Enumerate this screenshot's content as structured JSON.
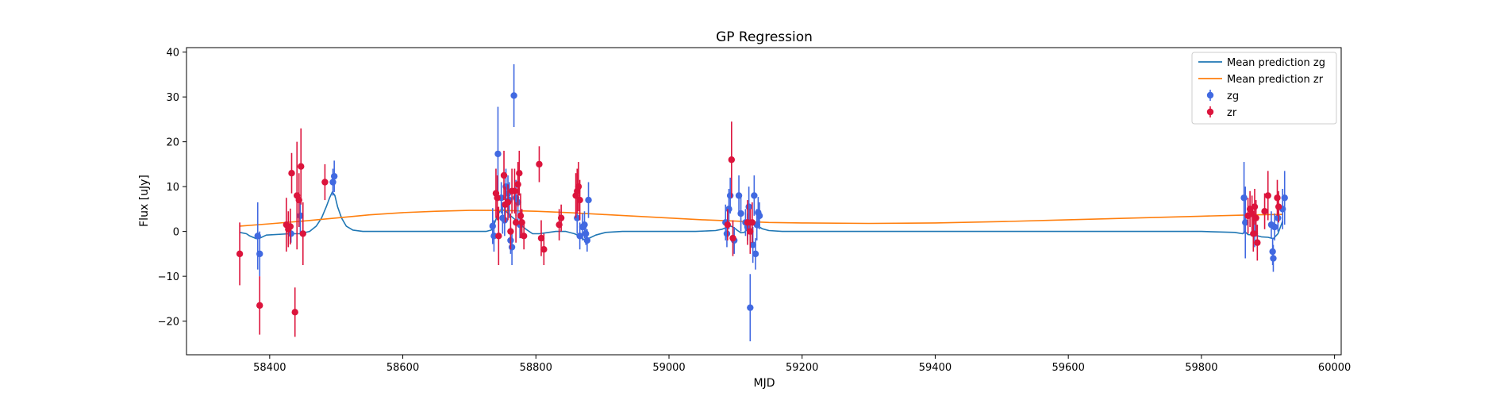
{
  "chart_data": {
    "type": "scatter",
    "title": "GP Regression",
    "xlabel": "MJD",
    "ylabel": "Flux [uJy]",
    "xlim": [
      58275,
      60010
    ],
    "ylim": [
      -27.5,
      41
    ],
    "xticks": [
      58400,
      58600,
      58800,
      59000,
      59200,
      59400,
      59600,
      59800,
      60000
    ],
    "yticks": [
      -20,
      -10,
      0,
      10,
      20,
      30,
      40
    ],
    "grid": false,
    "legend_position": "top-right",
    "colors": {
      "mean_zg": "#1f77b4",
      "mean_zr": "#ff7f0e",
      "zg": "#4169e1",
      "zr": "#dc143c"
    },
    "series": [
      {
        "name": "Mean prediction zg",
        "kind": "line",
        "color_key": "mean_zg",
        "x": [
          58355,
          58365,
          58370,
          58380,
          58385,
          58395,
          58430,
          58445,
          58460,
          58470,
          58478,
          58485,
          58490,
          58494,
          58498,
          58502,
          58508,
          58515,
          58525,
          58540,
          58560,
          58600,
          58650,
          58700,
          58725,
          58733,
          58737,
          58742,
          58748,
          58755,
          58762,
          58770,
          58777,
          58785,
          58795,
          58805,
          58815,
          58830,
          58845,
          58858,
          58865,
          58872,
          58880,
          58890,
          58905,
          58930,
          58960,
          59000,
          59040,
          59070,
          59080,
          59088,
          59093,
          59098,
          59103,
          59108,
          59113,
          59118,
          59123,
          59128,
          59133,
          59140,
          59150,
          59170,
          59200,
          59300,
          59400,
          59500,
          59600,
          59700,
          59800,
          59850,
          59862,
          59865,
          59870,
          59880,
          59890,
          59900,
          59908,
          59915,
          59922
        ],
        "y": [
          -0.2,
          -0.5,
          -1.0,
          -1.6,
          -1.5,
          -0.8,
          -0.5,
          -0.5,
          0.0,
          1.2,
          3.0,
          5.5,
          7.5,
          8.8,
          8.0,
          5.5,
          3.0,
          1.2,
          0.3,
          0.0,
          0.0,
          0.0,
          0.0,
          0.0,
          0.0,
          0.3,
          1.5,
          3.5,
          5.0,
          4.5,
          3.5,
          2.5,
          1.5,
          0.5,
          -0.5,
          -0.5,
          -0.3,
          0.0,
          0.0,
          -0.5,
          -1.0,
          -1.8,
          -1.5,
          -0.8,
          -0.2,
          0.0,
          0.0,
          0.0,
          0.0,
          0.2,
          0.5,
          1.0,
          1.2,
          0.8,
          0.2,
          -0.3,
          -0.2,
          0.5,
          1.5,
          2.0,
          1.3,
          0.6,
          0.2,
          0.0,
          0.0,
          0.0,
          0.0,
          0.0,
          0.0,
          0.0,
          0.0,
          -0.2,
          -0.5,
          0.0,
          -0.7,
          -0.8,
          -1.2,
          -1.3,
          -1.6,
          -0.5,
          2.3
        ]
      },
      {
        "name": "Mean prediction zr",
        "kind": "line",
        "color_key": "mean_zr",
        "x": [
          58355,
          58400,
          58450,
          58500,
          58550,
          58600,
          58650,
          58700,
          58750,
          58800,
          58850,
          58900,
          58950,
          59000,
          59050,
          59100,
          59150,
          59200,
          59300,
          59400,
          59500,
          59600,
          59700,
          59800,
          59850,
          59880,
          59900,
          59922
        ],
        "y": [
          1.2,
          1.7,
          2.3,
          3.0,
          3.7,
          4.2,
          4.5,
          4.7,
          4.7,
          4.5,
          4.2,
          3.8,
          3.4,
          3.0,
          2.6,
          2.3,
          2.0,
          1.9,
          1.8,
          1.9,
          2.2,
          2.6,
          3.0,
          3.4,
          3.6,
          3.7,
          3.75,
          3.8
        ]
      },
      {
        "name": "zg",
        "kind": "errorbar",
        "color_key": "zg",
        "points": [
          [
            58382,
            -1,
            7.5
          ],
          [
            58385,
            -5,
            5
          ],
          [
            58432,
            -0.5,
            2
          ],
          [
            58446,
            3.5,
            4
          ],
          [
            58495,
            11,
            3
          ],
          [
            58497,
            12.3,
            3.5
          ],
          [
            58735,
            1.2,
            4
          ],
          [
            58737,
            -1,
            3.5
          ],
          [
            58743,
            17.3,
            10.5
          ],
          [
            58748,
            7.5,
            3.5
          ],
          [
            58750,
            3,
            3.5
          ],
          [
            58753,
            2.5,
            3.5
          ],
          [
            58755,
            10,
            4
          ],
          [
            58758,
            8.5,
            4
          ],
          [
            58760,
            7,
            4
          ],
          [
            58762,
            -2,
            3
          ],
          [
            58764,
            -3.5,
            4
          ],
          [
            58767,
            30.3,
            7
          ],
          [
            58770,
            7.5,
            4
          ],
          [
            58773,
            6.5,
            4
          ],
          [
            58776,
            1.5,
            3
          ],
          [
            58862,
            3,
            3.5
          ],
          [
            58866,
            -1,
            3
          ],
          [
            58870,
            1,
            3
          ],
          [
            58873,
            1.5,
            3
          ],
          [
            58875,
            -0.5,
            2.5
          ],
          [
            58877,
            -2,
            2.5
          ],
          [
            58879,
            7,
            4
          ],
          [
            59085,
            2,
            4
          ],
          [
            59087,
            -0.5,
            3
          ],
          [
            59090,
            5,
            4.5
          ],
          [
            59092,
            8,
            4
          ],
          [
            59098,
            -2,
            3
          ],
          [
            59105,
            8,
            4.5
          ],
          [
            59108,
            4,
            4
          ],
          [
            59115,
            2,
            3
          ],
          [
            59118,
            1,
            3
          ],
          [
            59120,
            5.5,
            4.5
          ],
          [
            59122,
            -17,
            7.5
          ],
          [
            59126,
            -3,
            4
          ],
          [
            59128,
            8,
            4.5
          ],
          [
            59130,
            -5,
            3.5
          ],
          [
            59132,
            1.5,
            3.5
          ],
          [
            59134,
            4.2,
            3.5
          ],
          [
            59136,
            3.5,
            3
          ],
          [
            59864,
            7.5,
            8
          ],
          [
            59866,
            2,
            8
          ],
          [
            59880,
            -0.5,
            3
          ],
          [
            59905,
            1.5,
            3
          ],
          [
            59907,
            -4.5,
            3
          ],
          [
            59908,
            -6,
            3
          ],
          [
            59910,
            1,
            3
          ],
          [
            59915,
            3,
            3
          ],
          [
            59922,
            5,
            4.5
          ],
          [
            59925,
            7.5,
            6
          ]
        ]
      },
      {
        "name": "zr",
        "kind": "errorbar",
        "color_key": "zr",
        "points": [
          [
            58355,
            -5,
            7
          ],
          [
            58385,
            -16.5,
            6.5
          ],
          [
            58425,
            1.5,
            6
          ],
          [
            58428,
            0.5,
            4
          ],
          [
            58431,
            1.1,
            4
          ],
          [
            58433,
            13,
            4.5
          ],
          [
            58438,
            -18,
            5.5
          ],
          [
            58441,
            8,
            12
          ],
          [
            58444,
            7,
            6
          ],
          [
            58447,
            14.5,
            8.5
          ],
          [
            58450,
            -0.5,
            7
          ],
          [
            58483,
            11,
            4
          ],
          [
            58740,
            8.5,
            5.5
          ],
          [
            58742,
            7.5,
            5
          ],
          [
            58744,
            -1,
            6.5
          ],
          [
            58752,
            12.5,
            5.5
          ],
          [
            58754,
            6,
            4
          ],
          [
            58758,
            6.5,
            4
          ],
          [
            58762,
            0,
            4
          ],
          [
            58764,
            9,
            5
          ],
          [
            58768,
            9,
            5
          ],
          [
            58770,
            2,
            4.5
          ],
          [
            58773,
            10.5,
            5
          ],
          [
            58775,
            13,
            5
          ],
          [
            58777,
            3.5,
            5
          ],
          [
            58779,
            2,
            3
          ],
          [
            58782,
            -1,
            3
          ],
          [
            58805,
            15,
            4
          ],
          [
            58808,
            -1.5,
            4
          ],
          [
            58812,
            -4,
            3.5
          ],
          [
            58835,
            1.5,
            3.5
          ],
          [
            58838,
            3,
            3
          ],
          [
            58860,
            8,
            5
          ],
          [
            58862,
            9,
            5
          ],
          [
            58864,
            10,
            5.5
          ],
          [
            58866,
            7,
            4.5
          ],
          [
            59088,
            1.5,
            3.5
          ],
          [
            59094,
            16,
            8.5
          ],
          [
            59096,
            -1.5,
            4
          ],
          [
            59118,
            2,
            5
          ],
          [
            59122,
            0,
            5
          ],
          [
            59125,
            2,
            4.5
          ],
          [
            59870,
            3.5,
            4
          ],
          [
            59873,
            5,
            4
          ],
          [
            59876,
            4,
            4
          ],
          [
            59878,
            -0.5,
            4
          ],
          [
            59880,
            5.5,
            4
          ],
          [
            59882,
            3,
            4
          ],
          [
            59884,
            -2.5,
            4
          ],
          [
            59895,
            4.5,
            4
          ],
          [
            59900,
            8,
            5.5
          ],
          [
            59914,
            7.5,
            4
          ],
          [
            59916,
            5.5,
            3.5
          ]
        ]
      }
    ]
  }
}
